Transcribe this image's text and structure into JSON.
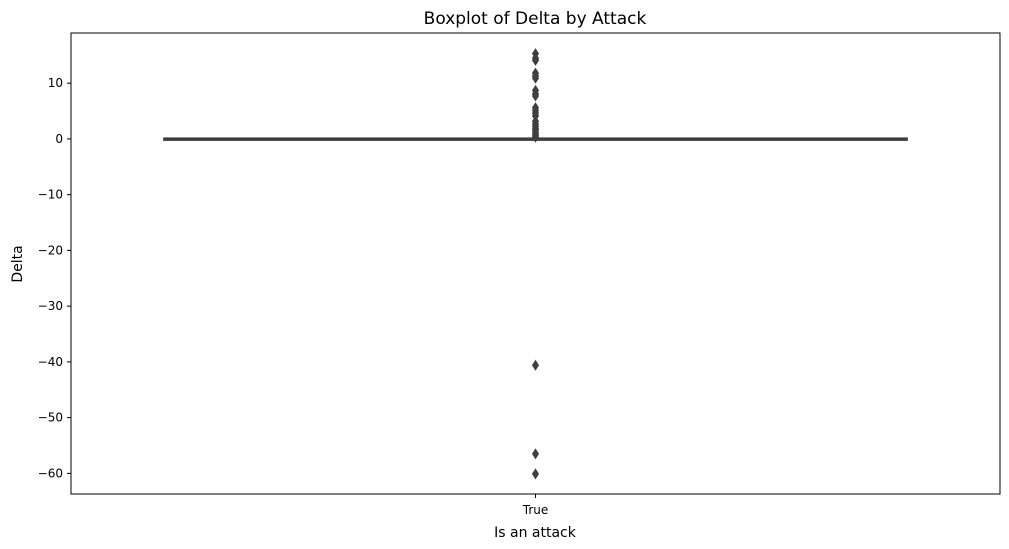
{
  "chart_data": {
    "type": "boxplot",
    "title": "Boxplot of Delta by Attack",
    "xlabel": "Is an attack",
    "ylabel": "Delta",
    "categories": [
      "True"
    ],
    "ylim": [
      -63.7,
      19.0
    ],
    "yticks": [
      10,
      0,
      -10,
      -20,
      -30,
      -40,
      -50,
      -60
    ],
    "ytick_labels": [
      "10",
      "0",
      "−10",
      "−20",
      "−30",
      "−40",
      "−50",
      "−60"
    ],
    "grid": false,
    "legend": "none",
    "boxes": [
      {
        "category": "True",
        "whisker_low": 0,
        "q1": 0,
        "median": 0,
        "q3": 0,
        "whisker_high": 0,
        "outliers": [
          15.3,
          14.5,
          14.1,
          11.8,
          11.3,
          10.9,
          8.7,
          8.1,
          7.7,
          5.6,
          5.1,
          4.6,
          4.1,
          3.2,
          2.7,
          2.3,
          1.9,
          1.6,
          1.2,
          0.9,
          0.6,
          0.3,
          -40.6,
          -56.5,
          -60.1
        ]
      }
    ],
    "colors": {
      "box_line": "#3f3f3f",
      "outlier": "#3f3f3f",
      "axes": "#000000"
    }
  }
}
